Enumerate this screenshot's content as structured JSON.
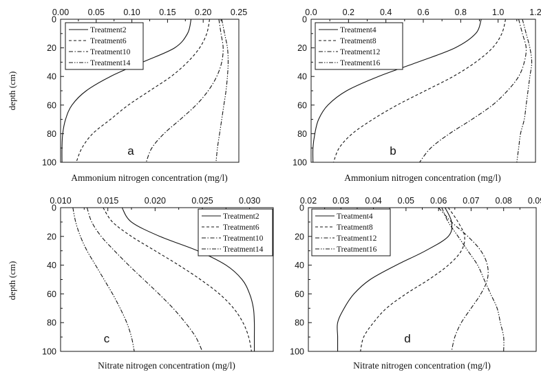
{
  "chart_data": [
    {
      "type": "line",
      "panel_label": "a",
      "xlabel": "Ammonium nitrogen concentration (mg/l)",
      "ylabel": "depth (cm)",
      "xlim": [
        0,
        0.25
      ],
      "ylim": [
        0,
        100
      ],
      "y_inverted": true,
      "x_axis_position": "top",
      "xticks": [
        "0.00",
        "0.05",
        "0.10",
        "0.15",
        "0.20",
        "0.25"
      ],
      "yticks": [
        "0",
        "20",
        "40",
        "60",
        "80",
        "100"
      ],
      "legend_position": "top-left",
      "series": [
        {
          "name": "Treatment2",
          "dash": "solid",
          "points": [
            [
              0.183,
              0
            ],
            [
              0.178,
              10
            ],
            [
              0.16,
              20
            ],
            [
              0.115,
              30
            ],
            [
              0.07,
              40
            ],
            [
              0.036,
              50
            ],
            [
              0.016,
              60
            ],
            [
              0.007,
              70
            ],
            [
              0.003,
              80
            ],
            [
              0.002,
              90
            ],
            [
              0.002,
              100
            ]
          ]
        },
        {
          "name": "Treatment6",
          "dash": "dash",
          "points": [
            [
              0.209,
              0
            ],
            [
              0.205,
              10
            ],
            [
              0.195,
              20
            ],
            [
              0.178,
              30
            ],
            [
              0.155,
              40
            ],
            [
              0.125,
              50
            ],
            [
              0.095,
              60
            ],
            [
              0.07,
              70
            ],
            [
              0.045,
              80
            ],
            [
              0.03,
              90
            ],
            [
              0.022,
              100
            ]
          ]
        },
        {
          "name": "Treatment10",
          "dash": "dashdot",
          "points": [
            [
              0.222,
              0
            ],
            [
              0.225,
              10
            ],
            [
              0.228,
              20
            ],
            [
              0.226,
              30
            ],
            [
              0.219,
              40
            ],
            [
              0.207,
              50
            ],
            [
              0.19,
              60
            ],
            [
              0.168,
              70
            ],
            [
              0.145,
              80
            ],
            [
              0.128,
              90
            ],
            [
              0.12,
              100
            ]
          ]
        },
        {
          "name": "Treatment14",
          "dash": "dashdotdot",
          "points": [
            [
              0.226,
              0
            ],
            [
              0.23,
              10
            ],
            [
              0.234,
              20
            ],
            [
              0.235,
              30
            ],
            [
              0.234,
              40
            ],
            [
              0.232,
              50
            ],
            [
              0.229,
              60
            ],
            [
              0.226,
              70
            ],
            [
              0.223,
              80
            ],
            [
              0.22,
              90
            ],
            [
              0.218,
              100
            ]
          ]
        }
      ]
    },
    {
      "type": "line",
      "panel_label": "b",
      "xlabel": "Ammonium nitrogen concentration (mg/l)",
      "ylabel": "",
      "xlim": [
        0,
        1.2
      ],
      "ylim": [
        0,
        100
      ],
      "y_inverted": true,
      "x_axis_position": "top",
      "xticks": [
        "0.0",
        "0.2",
        "0.4",
        "0.6",
        "0.8",
        "1.0",
        "1.2"
      ],
      "yticks": [
        "0",
        "20",
        "40",
        "60",
        "80",
        "100"
      ],
      "legend_position": "top-left",
      "series": [
        {
          "name": "Treatment4",
          "dash": "solid",
          "points": [
            [
              0.91,
              0
            ],
            [
              0.88,
              10
            ],
            [
              0.77,
              20
            ],
            [
              0.57,
              30
            ],
            [
              0.36,
              40
            ],
            [
              0.19,
              50
            ],
            [
              0.09,
              60
            ],
            [
              0.04,
              70
            ],
            [
              0.02,
              80
            ],
            [
              0.01,
              90
            ],
            [
              0.01,
              100
            ]
          ]
        },
        {
          "name": "Treatment8",
          "dash": "dash",
          "points": [
            [
              1.04,
              0
            ],
            [
              1.02,
              10
            ],
            [
              0.97,
              20
            ],
            [
              0.88,
              30
            ],
            [
              0.76,
              40
            ],
            [
              0.61,
              50
            ],
            [
              0.46,
              60
            ],
            [
              0.33,
              70
            ],
            [
              0.22,
              80
            ],
            [
              0.15,
              90
            ],
            [
              0.12,
              100
            ]
          ]
        },
        {
          "name": "Treatment12",
          "dash": "dashdot",
          "points": [
            [
              1.11,
              0
            ],
            [
              1.13,
              10
            ],
            [
              1.15,
              20
            ],
            [
              1.14,
              30
            ],
            [
              1.11,
              40
            ],
            [
              1.05,
              50
            ],
            [
              0.97,
              60
            ],
            [
              0.86,
              70
            ],
            [
              0.74,
              80
            ],
            [
              0.64,
              90
            ],
            [
              0.58,
              100
            ]
          ]
        },
        {
          "name": "Treatment16",
          "dash": "dashdotdot",
          "points": [
            [
              1.13,
              0
            ],
            [
              1.15,
              10
            ],
            [
              1.17,
              20
            ],
            [
              1.18,
              30
            ],
            [
              1.17,
              40
            ],
            [
              1.16,
              50
            ],
            [
              1.15,
              60
            ],
            [
              1.14,
              70
            ],
            [
              1.12,
              80
            ],
            [
              1.11,
              90
            ],
            [
              1.1,
              100
            ]
          ]
        }
      ]
    },
    {
      "type": "line",
      "panel_label": "c",
      "xlabel": "Nitrate nitrogen concentration (mg/l)",
      "ylabel": "depth (cm)",
      "xlim": [
        0.01,
        0.0325
      ],
      "ylim": [
        0,
        100
      ],
      "y_inverted": true,
      "x_axis_position": "top",
      "xticks": [
        "0.010",
        "0.015",
        "0.020",
        "0.025",
        "0.030"
      ],
      "yticks": [
        "0",
        "20",
        "40",
        "60",
        "80",
        "100"
      ],
      "legend_position": "top-right",
      "series": [
        {
          "name": "Treatment2",
          "dash": "solid",
          "points": [
            [
              0.0165,
              0
            ],
            [
              0.0175,
              10
            ],
            [
              0.0205,
              20
            ],
            [
              0.0245,
              30
            ],
            [
              0.0275,
              40
            ],
            [
              0.0292,
              50
            ],
            [
              0.03,
              60
            ],
            [
              0.0304,
              70
            ],
            [
              0.0305,
              80
            ],
            [
              0.0305,
              90
            ],
            [
              0.0305,
              100
            ]
          ]
        },
        {
          "name": "Treatment6",
          "dash": "dash",
          "points": [
            [
              0.0145,
              0
            ],
            [
              0.0155,
              10
            ],
            [
              0.0175,
              20
            ],
            [
              0.02,
              30
            ],
            [
              0.0225,
              40
            ],
            [
              0.0248,
              50
            ],
            [
              0.0268,
              60
            ],
            [
              0.0283,
              70
            ],
            [
              0.0293,
              80
            ],
            [
              0.0299,
              90
            ],
            [
              0.0302,
              100
            ]
          ]
        },
        {
          "name": "Treatment10",
          "dash": "dashdot",
          "points": [
            [
              0.0128,
              0
            ],
            [
              0.0133,
              10
            ],
            [
              0.0143,
              20
            ],
            [
              0.0157,
              30
            ],
            [
              0.0172,
              40
            ],
            [
              0.0188,
              50
            ],
            [
              0.0204,
              60
            ],
            [
              0.0219,
              70
            ],
            [
              0.0232,
              80
            ],
            [
              0.0243,
              90
            ],
            [
              0.025,
              100
            ]
          ]
        },
        {
          "name": "Treatment14",
          "dash": "dashdotdot",
          "points": [
            [
              0.0113,
              0
            ],
            [
              0.0116,
              10
            ],
            [
              0.0121,
              20
            ],
            [
              0.0128,
              30
            ],
            [
              0.0137,
              40
            ],
            [
              0.0146,
              50
            ],
            [
              0.0155,
              60
            ],
            [
              0.0163,
              70
            ],
            [
              0.017,
              80
            ],
            [
              0.0175,
              90
            ],
            [
              0.0178,
              100
            ]
          ]
        }
      ]
    },
    {
      "type": "line",
      "panel_label": "d",
      "xlabel": "Nitrate nitrogen concentration (mg/l)",
      "ylabel": "",
      "xlim": [
        0.02,
        0.09
      ],
      "ylim": [
        0,
        100
      ],
      "y_inverted": true,
      "x_axis_position": "top",
      "xticks": [
        "0.02",
        "0.03",
        "0.04",
        "0.05",
        "0.06",
        "0.07",
        "0.08",
        "0.09"
      ],
      "yticks": [
        "0",
        "20",
        "40",
        "60",
        "80",
        "100"
      ],
      "legend_position": "top-left",
      "series": [
        {
          "name": "Treatment4",
          "dash": "solid",
          "points": [
            [
              0.062,
              0
            ],
            [
              0.064,
              10
            ],
            [
              0.063,
              20
            ],
            [
              0.056,
              30
            ],
            [
              0.047,
              40
            ],
            [
              0.039,
              50
            ],
            [
              0.034,
              60
            ],
            [
              0.031,
              70
            ],
            [
              0.029,
              80
            ],
            [
              0.029,
              90
            ],
            [
              0.029,
              100
            ]
          ]
        },
        {
          "name": "Treatment8",
          "dash": "dash",
          "points": [
            [
              0.063,
              0
            ],
            [
              0.066,
              10
            ],
            [
              0.068,
              20
            ],
            [
              0.067,
              30
            ],
            [
              0.063,
              40
            ],
            [
              0.057,
              50
            ],
            [
              0.05,
              60
            ],
            [
              0.044,
              70
            ],
            [
              0.04,
              80
            ],
            [
              0.037,
              90
            ],
            [
              0.036,
              100
            ]
          ]
        },
        {
          "name": "Treatment12",
          "dash": "dashdot",
          "points": [
            [
              0.06,
              0
            ],
            [
              0.064,
              10
            ],
            [
              0.069,
              20
            ],
            [
              0.073,
              30
            ],
            [
              0.075,
              40
            ],
            [
              0.075,
              50
            ],
            [
              0.073,
              60
            ],
            [
              0.07,
              70
            ],
            [
              0.067,
              80
            ],
            [
              0.065,
              90
            ],
            [
              0.064,
              100
            ]
          ]
        },
        {
          "name": "Treatment16",
          "dash": "dashdotdot",
          "points": [
            [
              0.061,
              0
            ],
            [
              0.063,
              10
            ],
            [
              0.066,
              20
            ],
            [
              0.069,
              30
            ],
            [
              0.072,
              40
            ],
            [
              0.074,
              50
            ],
            [
              0.076,
              60
            ],
            [
              0.078,
              70
            ],
            [
              0.079,
              80
            ],
            [
              0.08,
              90
            ],
            [
              0.08,
              100
            ]
          ]
        }
      ]
    }
  ]
}
